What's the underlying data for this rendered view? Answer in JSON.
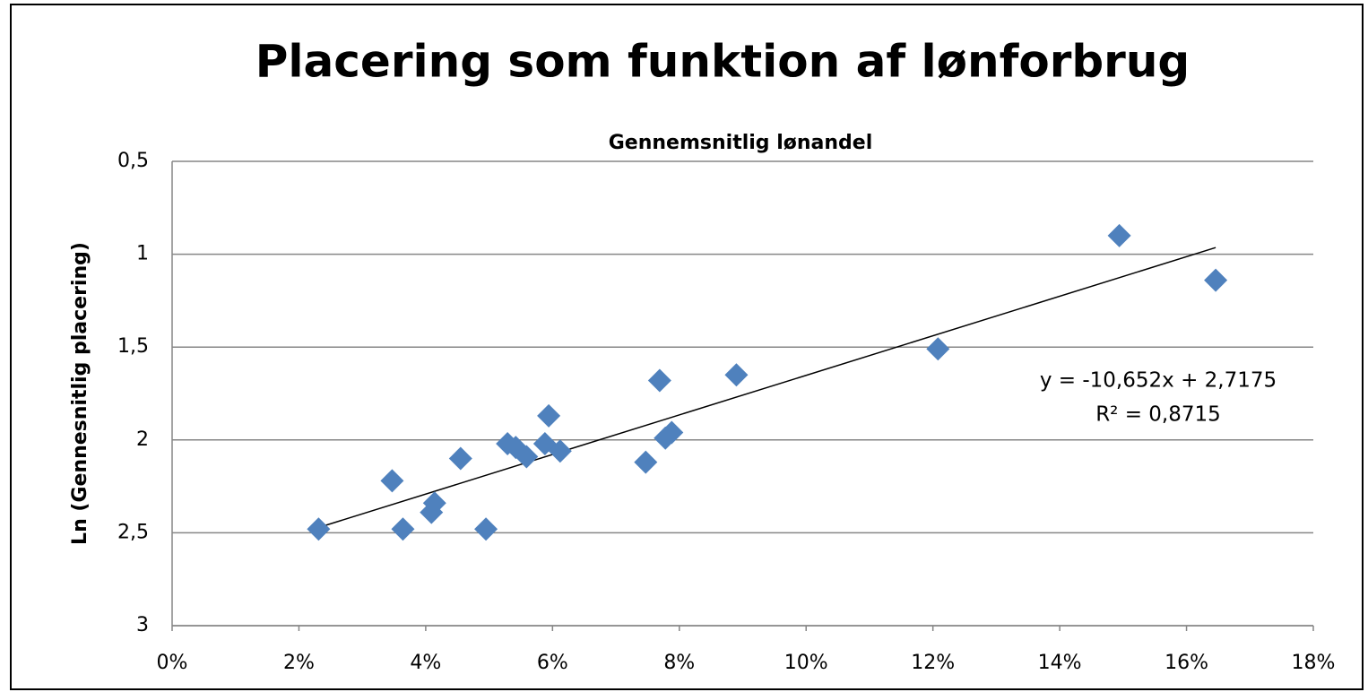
{
  "chart_data": {
    "type": "scatter",
    "title": "Placering som funktion af lønforbrug",
    "subtitle": "Gennemsnitlig lønandel",
    "y_label": "Ln (Gennesnitlig placering)",
    "color": "#4f81bd",
    "marker": "diamond",
    "x": [
      2.31,
      3.47,
      3.64,
      4.09,
      4.14,
      4.55,
      4.95,
      5.29,
      5.42,
      5.59,
      5.88,
      5.94,
      6.12,
      7.47,
      7.69,
      7.78,
      7.88,
      8.9,
      12.08,
      14.94,
      16.46
    ],
    "values": [
      2.48,
      2.22,
      2.48,
      2.39,
      2.34,
      2.1,
      2.48,
      2.02,
      2.04,
      2.09,
      2.02,
      1.87,
      2.06,
      2.12,
      1.68,
      1.99,
      1.96,
      1.65,
      1.51,
      0.9,
      1.14
    ],
    "xlim": [
      0,
      18
    ],
    "xticks": [
      {
        "value": 0,
        "label": "0%"
      },
      {
        "value": 2,
        "label": "2%"
      },
      {
        "value": 4,
        "label": "4%"
      },
      {
        "value": 6,
        "label": "6%"
      },
      {
        "value": 8,
        "label": "8%"
      },
      {
        "value": 10,
        "label": "10%"
      },
      {
        "value": 12,
        "label": "12%"
      },
      {
        "value": 14,
        "label": "14%"
      },
      {
        "value": 16,
        "label": "16%"
      },
      {
        "value": 18,
        "label": "18%"
      }
    ],
    "ylim": [
      0.5,
      3
    ],
    "y_reversed": true,
    "yticks": [
      {
        "value": 0.5,
        "label": "0,5"
      },
      1,
      {
        "value": 1.5,
        "label": "1,5"
      },
      2,
      {
        "value": 2.5,
        "label": "2,5"
      },
      3
    ],
    "grid": true,
    "trendline": {
      "slope": -10.652,
      "intercept": 2.7175
    },
    "annotations": [
      "y = -10,652x + 2,7175",
      "R² = 0,8715"
    ]
  }
}
